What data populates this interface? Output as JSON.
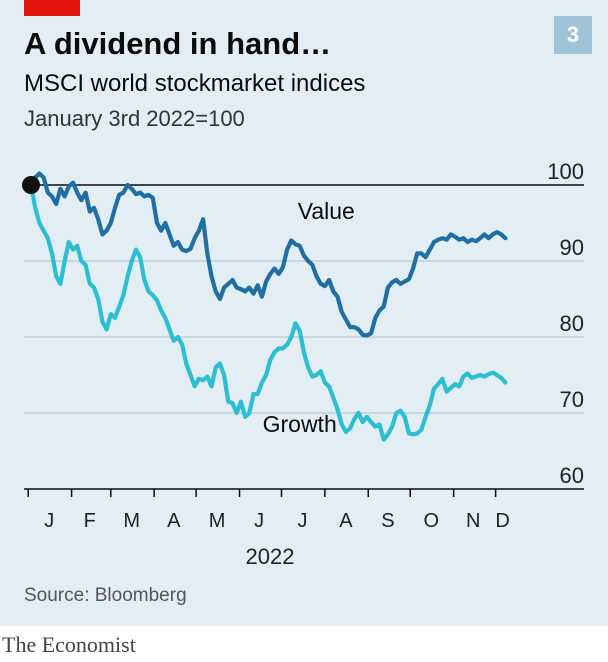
{
  "badge": "3",
  "colors": {
    "value": "#1f6fa3",
    "growth": "#2bbfd1",
    "accent": "#e3120b",
    "badge": "#9fc4d8"
  },
  "brand": "The Economist",
  "chart_data": {
    "type": "line",
    "title": "A dividend in hand…",
    "subtitle": "MSCI world stockmarket indices",
    "unit_note": "January 3rd 2022=100",
    "source": "Source: Bloomberg",
    "year_label": "2022",
    "x_start": "2022-01-03",
    "ylim": [
      60,
      100
    ],
    "yticks": [
      {
        "value": 100,
        "label": "100"
      },
      {
        "value": 90,
        "label": "90"
      },
      {
        "value": 80,
        "label": "80"
      },
      {
        "value": 70,
        "label": "70"
      },
      {
        "value": 60,
        "label": "60"
      }
    ],
    "month_labels": [
      {
        "label": "J",
        "date": "2022-01-16"
      },
      {
        "label": "F",
        "date": "2022-02-14"
      },
      {
        "label": "M",
        "date": "2022-03-16"
      },
      {
        "label": "A",
        "date": "2022-04-15"
      },
      {
        "label": "M",
        "date": "2022-05-16"
      },
      {
        "label": "J",
        "date": "2022-06-15"
      },
      {
        "label": "J",
        "date": "2022-07-16"
      },
      {
        "label": "A",
        "date": "2022-08-16"
      },
      {
        "label": "S",
        "date": "2022-09-15"
      },
      {
        "label": "O",
        "date": "2022-10-16"
      },
      {
        "label": "N",
        "date": "2022-11-15"
      },
      {
        "label": "D",
        "date": "2022-12-06"
      }
    ],
    "month_ticks": [
      "2022-01-01",
      "2022-02-01",
      "2022-03-01",
      "2022-04-01",
      "2022-05-01",
      "2022-06-01",
      "2022-07-01",
      "2022-08-01",
      "2022-09-01",
      "2022-10-01",
      "2022-11-01",
      "2022-12-01"
    ],
    "baseline": 100,
    "series": [
      {
        "name": "Value",
        "color": "#1f6fa3",
        "points": [
          [
            "2022-01-03",
            100
          ],
          [
            "2022-01-06",
            101
          ],
          [
            "2022-01-09",
            101.5
          ],
          [
            "2022-01-12",
            101
          ],
          [
            "2022-01-15",
            99
          ],
          [
            "2022-01-18",
            98.5
          ],
          [
            "2022-01-21",
            97.5
          ],
          [
            "2022-01-24",
            99.5
          ],
          [
            "2022-01-27",
            98.5
          ],
          [
            "2022-01-30",
            99.8
          ],
          [
            "2022-02-02",
            100.3
          ],
          [
            "2022-02-05",
            99
          ],
          [
            "2022-02-08",
            98
          ],
          [
            "2022-02-11",
            99
          ],
          [
            "2022-02-14",
            96.5
          ],
          [
            "2022-02-17",
            97
          ],
          [
            "2022-02-20",
            95.5
          ],
          [
            "2022-02-23",
            93.5
          ],
          [
            "2022-02-26",
            94
          ],
          [
            "2022-03-01",
            95
          ],
          [
            "2022-03-04",
            97
          ],
          [
            "2022-03-07",
            98.7
          ],
          [
            "2022-03-10",
            99
          ],
          [
            "2022-03-13",
            100
          ],
          [
            "2022-03-16",
            99.5
          ],
          [
            "2022-03-19",
            98.8
          ],
          [
            "2022-03-22",
            99
          ],
          [
            "2022-03-25",
            98.5
          ],
          [
            "2022-03-28",
            98.7
          ],
          [
            "2022-03-31",
            98.3
          ],
          [
            "2022-04-03",
            95
          ],
          [
            "2022-04-06",
            94
          ],
          [
            "2022-04-09",
            95
          ],
          [
            "2022-04-12",
            93.5
          ],
          [
            "2022-04-15",
            92
          ],
          [
            "2022-04-18",
            92.5
          ],
          [
            "2022-04-21",
            91.5
          ],
          [
            "2022-04-24",
            91.3
          ],
          [
            "2022-04-27",
            91.6
          ],
          [
            "2022-04-30",
            93
          ],
          [
            "2022-05-03",
            94
          ],
          [
            "2022-05-06",
            95.5
          ],
          [
            "2022-05-09",
            91
          ],
          [
            "2022-05-12",
            88
          ],
          [
            "2022-05-15",
            86
          ],
          [
            "2022-05-18",
            85
          ],
          [
            "2022-05-21",
            86.5
          ],
          [
            "2022-05-24",
            87
          ],
          [
            "2022-05-27",
            87.5
          ],
          [
            "2022-05-30",
            86.5
          ],
          [
            "2022-06-02",
            86.3
          ],
          [
            "2022-06-05",
            86
          ],
          [
            "2022-06-08",
            86.5
          ],
          [
            "2022-06-11",
            85.7
          ],
          [
            "2022-06-14",
            86.8
          ],
          [
            "2022-06-17",
            85.3
          ],
          [
            "2022-06-20",
            87.3
          ],
          [
            "2022-06-23",
            88.3
          ],
          [
            "2022-06-26",
            89
          ],
          [
            "2022-06-29",
            88.3
          ],
          [
            "2022-07-02",
            89.2
          ],
          [
            "2022-07-05",
            91.5
          ],
          [
            "2022-07-08",
            92.7
          ],
          [
            "2022-07-11",
            92.2
          ],
          [
            "2022-07-14",
            92
          ],
          [
            "2022-07-17",
            90.7
          ],
          [
            "2022-07-20",
            90
          ],
          [
            "2022-07-23",
            89.5
          ],
          [
            "2022-07-26",
            88
          ],
          [
            "2022-07-29",
            87
          ],
          [
            "2022-08-01",
            86.7
          ],
          [
            "2022-08-04",
            87.5
          ],
          [
            "2022-08-07",
            86
          ],
          [
            "2022-08-10",
            85.3
          ],
          [
            "2022-08-13",
            83.3
          ],
          [
            "2022-08-16",
            82.3
          ],
          [
            "2022-08-19",
            81.3
          ],
          [
            "2022-08-22",
            81.3
          ],
          [
            "2022-08-25",
            81
          ],
          [
            "2022-08-28",
            80.3
          ],
          [
            "2022-08-31",
            80.2
          ],
          [
            "2022-09-03",
            80.5
          ],
          [
            "2022-09-06",
            82.5
          ],
          [
            "2022-09-09",
            83.5
          ],
          [
            "2022-09-12",
            84
          ],
          [
            "2022-09-15",
            86.5
          ],
          [
            "2022-09-18",
            87.2
          ],
          [
            "2022-09-21",
            87.5
          ],
          [
            "2022-09-24",
            87
          ],
          [
            "2022-09-27",
            87.3
          ],
          [
            "2022-09-30",
            87.6
          ],
          [
            "2022-10-03",
            89
          ],
          [
            "2022-10-06",
            91
          ],
          [
            "2022-10-09",
            91
          ],
          [
            "2022-10-12",
            90.5
          ],
          [
            "2022-10-15",
            91.5
          ],
          [
            "2022-10-18",
            92.5
          ],
          [
            "2022-10-21",
            92.8
          ],
          [
            "2022-10-24",
            93
          ],
          [
            "2022-10-27",
            92.8
          ],
          [
            "2022-10-30",
            93.5
          ],
          [
            "2022-11-02",
            93.2
          ],
          [
            "2022-11-05",
            92.8
          ],
          [
            "2022-11-08",
            93
          ],
          [
            "2022-11-11",
            92.5
          ],
          [
            "2022-11-14",
            92.8
          ],
          [
            "2022-11-17",
            92.6
          ],
          [
            "2022-11-20",
            93
          ],
          [
            "2022-11-23",
            93.5
          ],
          [
            "2022-11-26",
            93
          ],
          [
            "2022-11-29",
            93.5
          ],
          [
            "2022-12-02",
            93.8
          ],
          [
            "2022-12-05",
            93.5
          ],
          [
            "2022-12-08",
            93
          ]
        ],
        "label_date": "2022-08-02",
        "label_value": 95.5
      },
      {
        "name": "Growth",
        "color": "#2bbfd1",
        "points": [
          [
            "2022-01-03",
            100
          ],
          [
            "2022-01-06",
            97
          ],
          [
            "2022-01-09",
            95
          ],
          [
            "2022-01-12",
            94
          ],
          [
            "2022-01-15",
            93
          ],
          [
            "2022-01-18",
            91
          ],
          [
            "2022-01-21",
            88
          ],
          [
            "2022-01-24",
            87
          ],
          [
            "2022-01-27",
            90
          ],
          [
            "2022-01-30",
            92.5
          ],
          [
            "2022-02-02",
            91.5
          ],
          [
            "2022-02-05",
            92
          ],
          [
            "2022-02-08",
            90
          ],
          [
            "2022-02-11",
            89.5
          ],
          [
            "2022-02-14",
            87
          ],
          [
            "2022-02-17",
            86.5
          ],
          [
            "2022-02-20",
            85
          ],
          [
            "2022-02-23",
            82
          ],
          [
            "2022-02-26",
            81
          ],
          [
            "2022-03-01",
            83
          ],
          [
            "2022-03-04",
            82.5
          ],
          [
            "2022-03-07",
            84
          ],
          [
            "2022-03-10",
            85.5
          ],
          [
            "2022-03-13",
            88
          ],
          [
            "2022-03-16",
            90
          ],
          [
            "2022-03-19",
            91.5
          ],
          [
            "2022-03-22",
            90.5
          ],
          [
            "2022-03-25",
            87.5
          ],
          [
            "2022-03-28",
            86
          ],
          [
            "2022-03-31",
            85.5
          ],
          [
            "2022-04-03",
            84.8
          ],
          [
            "2022-04-06",
            83.5
          ],
          [
            "2022-04-09",
            82.5
          ],
          [
            "2022-04-12",
            81
          ],
          [
            "2022-04-15",
            79.5
          ],
          [
            "2022-04-18",
            80
          ],
          [
            "2022-04-21",
            79
          ],
          [
            "2022-04-24",
            76.5
          ],
          [
            "2022-04-27",
            75
          ],
          [
            "2022-04-30",
            73.5
          ],
          [
            "2022-05-03",
            74.5
          ],
          [
            "2022-05-06",
            74.3
          ],
          [
            "2022-05-09",
            74.8
          ],
          [
            "2022-05-12",
            73.5
          ],
          [
            "2022-05-15",
            76
          ],
          [
            "2022-05-18",
            76.5
          ],
          [
            "2022-05-21",
            75
          ],
          [
            "2022-05-24",
            71.5
          ],
          [
            "2022-05-27",
            71.3
          ],
          [
            "2022-05-30",
            70
          ],
          [
            "2022-06-02",
            71.5
          ],
          [
            "2022-06-05",
            69.5
          ],
          [
            "2022-06-08",
            70
          ],
          [
            "2022-06-11",
            72.5
          ],
          [
            "2022-06-14",
            72.5
          ],
          [
            "2022-06-17",
            74
          ],
          [
            "2022-06-20",
            75
          ],
          [
            "2022-06-23",
            77
          ],
          [
            "2022-06-26",
            78
          ],
          [
            "2022-06-29",
            78.5
          ],
          [
            "2022-07-02",
            78.5
          ],
          [
            "2022-07-05",
            79
          ],
          [
            "2022-07-08",
            80
          ],
          [
            "2022-07-11",
            81.8
          ],
          [
            "2022-07-14",
            80.8
          ],
          [
            "2022-07-17",
            78
          ],
          [
            "2022-07-20",
            76
          ],
          [
            "2022-07-23",
            74.8
          ],
          [
            "2022-07-26",
            75
          ],
          [
            "2022-07-29",
            75.5
          ],
          [
            "2022-08-01",
            74
          ],
          [
            "2022-08-04",
            73.5
          ],
          [
            "2022-08-07",
            72
          ],
          [
            "2022-08-10",
            70.5
          ],
          [
            "2022-08-13",
            68.5
          ],
          [
            "2022-08-16",
            67.5
          ],
          [
            "2022-08-19",
            68
          ],
          [
            "2022-08-22",
            69.2
          ],
          [
            "2022-08-25",
            70
          ],
          [
            "2022-08-28",
            68.8
          ],
          [
            "2022-08-31",
            69.5
          ],
          [
            "2022-09-03",
            68.8
          ],
          [
            "2022-09-06",
            68.2
          ],
          [
            "2022-09-09",
            68.5
          ],
          [
            "2022-09-12",
            66.5
          ],
          [
            "2022-09-15",
            67.2
          ],
          [
            "2022-09-18",
            68.2
          ],
          [
            "2022-09-21",
            70
          ],
          [
            "2022-09-24",
            70.3
          ],
          [
            "2022-09-27",
            69.5
          ],
          [
            "2022-09-30",
            67.3
          ],
          [
            "2022-10-03",
            67.2
          ],
          [
            "2022-10-06",
            67.3
          ],
          [
            "2022-10-09",
            67.8
          ],
          [
            "2022-10-12",
            69.5
          ],
          [
            "2022-10-15",
            71
          ],
          [
            "2022-10-18",
            73.2
          ],
          [
            "2022-10-21",
            73.8
          ],
          [
            "2022-10-24",
            74.5
          ],
          [
            "2022-10-27",
            72.8
          ],
          [
            "2022-10-30",
            73.3
          ],
          [
            "2022-11-02",
            73.8
          ],
          [
            "2022-11-05",
            73.5
          ],
          [
            "2022-11-08",
            74.8
          ],
          [
            "2022-11-11",
            75.2
          ],
          [
            "2022-11-14",
            74.6
          ],
          [
            "2022-11-17",
            74.8
          ],
          [
            "2022-11-20",
            75
          ],
          [
            "2022-11-23",
            74.8
          ],
          [
            "2022-11-26",
            75.1
          ],
          [
            "2022-11-29",
            75.3
          ],
          [
            "2022-12-02",
            75
          ],
          [
            "2022-12-05",
            74.6
          ],
          [
            "2022-12-08",
            74
          ]
        ],
        "label_date": "2022-07-14",
        "label_value": 67.5
      }
    ]
  }
}
